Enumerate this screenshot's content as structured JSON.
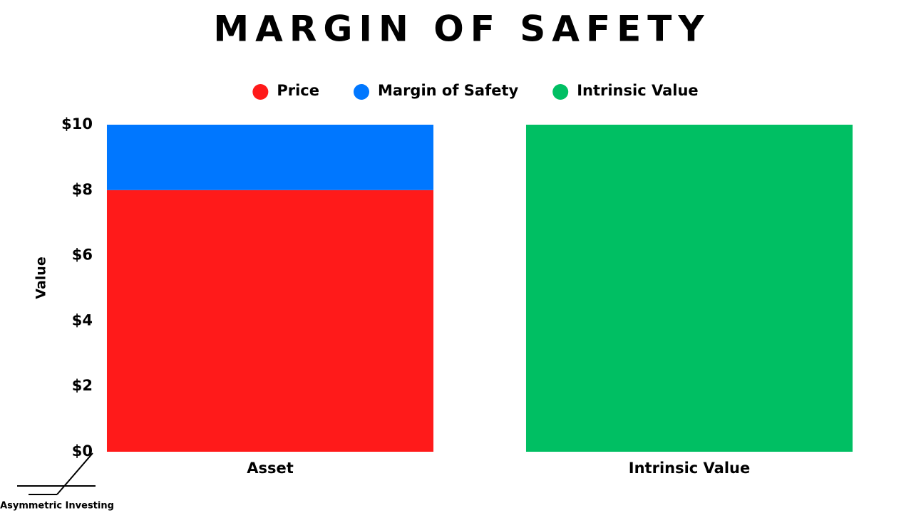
{
  "chart_data": {
    "type": "stacked-bar",
    "title": "MARGIN OF SAFETY",
    "y_label": "Value",
    "categories": [
      "Asset",
      "Intrinsic Value"
    ],
    "series": [
      {
        "name": "Price",
        "color": "#ff1a1a",
        "values": [
          8,
          null
        ]
      },
      {
        "name": "Margin of Safety",
        "color": "#0077ff",
        "values": [
          2,
          null
        ]
      },
      {
        "name": "Intrinsic Value",
        "color": "#00bf63",
        "values": [
          null,
          10
        ]
      }
    ],
    "ylim": [
      0,
      10
    ],
    "yticks": [
      {
        "value": 0,
        "label": "$0"
      },
      {
        "value": 2,
        "label": "$2"
      },
      {
        "value": 4,
        "label": "$4"
      },
      {
        "value": 6,
        "label": "$6"
      },
      {
        "value": 8,
        "label": "$8"
      },
      {
        "value": 10,
        "label": "$10"
      }
    ],
    "legend": "top",
    "grid": false
  },
  "footer": "Asymmetric Investing"
}
